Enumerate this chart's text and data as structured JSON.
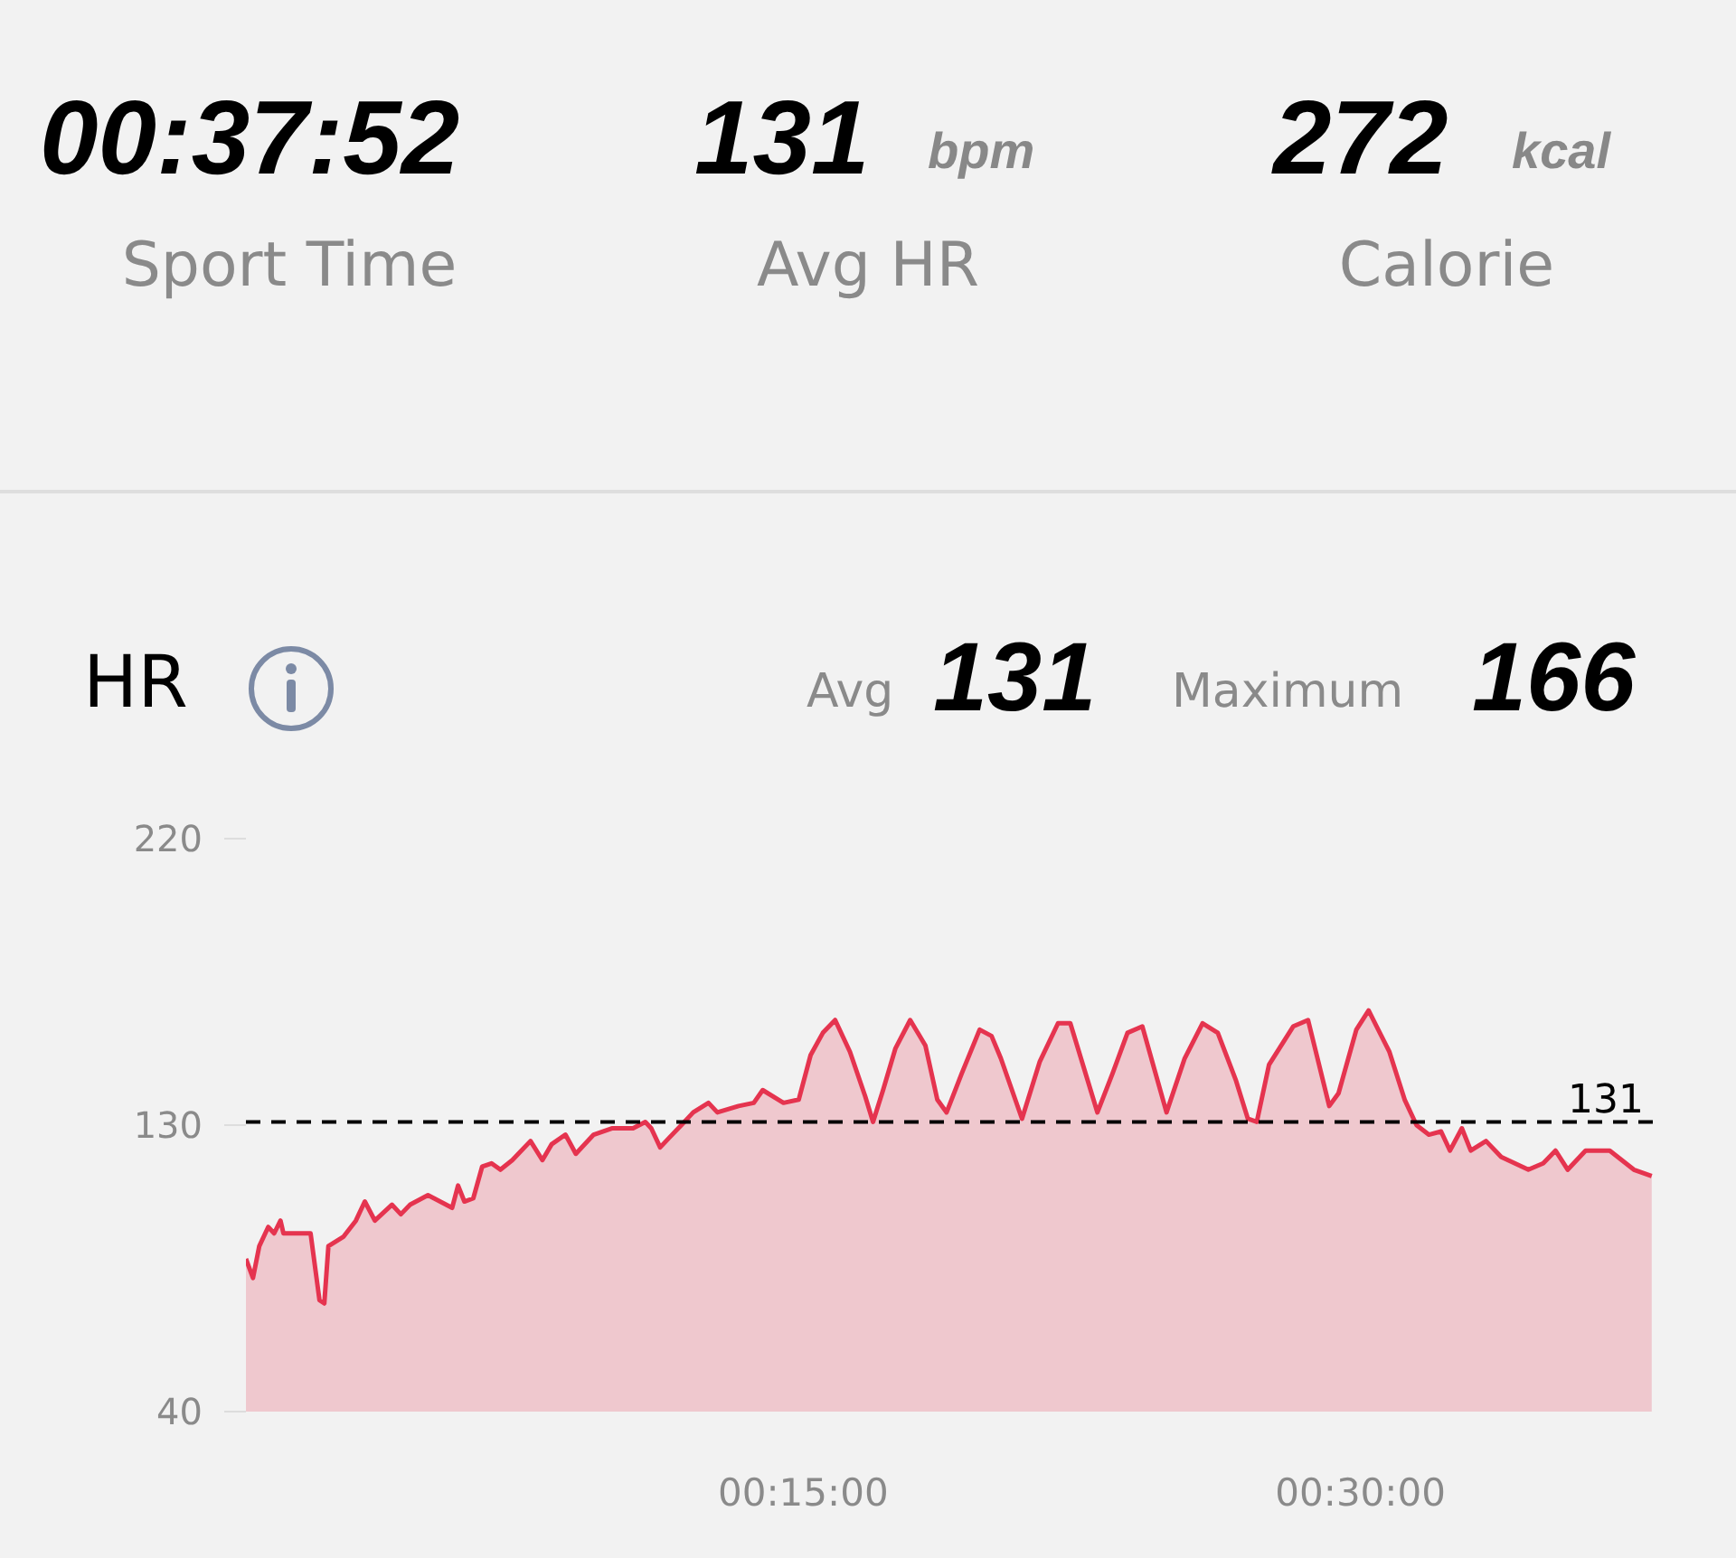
{
  "chart_data": {
    "type": "area",
    "title": "HR",
    "annotations": [
      "00:37:52",
      "Sport Time",
      "131",
      "bpm",
      "Avg HR",
      "272",
      "kcal",
      "Calorie",
      "Avg",
      "131",
      "Maximum",
      "166"
    ],
    "x": [
      0,
      0.19,
      0.36,
      0.6,
      0.76,
      0.93,
      1.01,
      1.74,
      1.98,
      2.11,
      2.22,
      2.63,
      2.96,
      3.2,
      3.47,
      3.93,
      4.17,
      4.42,
      4.9,
      5.55,
      5.71,
      5.88,
      6.12,
      6.36,
      6.61,
      6.85,
      7.17,
      7.66,
      7.98,
      8.23,
      8.6,
      8.88,
      9.36,
      9.85,
      10.42,
      10.75,
      10.91,
      11.15,
      11.39,
      11.72,
      12.04,
      12.45,
      12.69,
      13.26,
      13.67,
      13.91,
      14.47,
      14.88,
      15.2,
      15.53,
      15.86,
      16.26,
      16.67,
      16.88,
      17.15,
      17.48,
      17.88,
      18.29,
      18.61,
      18.86,
      19.26,
      19.75,
      20.07,
      20.32,
      20.89,
      21.37,
      21.86,
      22.19,
      22.92,
      23.32,
      23.73,
      24.13,
      24.78,
      25.27,
      25.75,
      26.16,
      26.65,
      26.97,
      27.21,
      27.54,
      28.19,
      28.59,
      29.16,
      29.41,
      29.89,
      30.22,
      30.78,
      31.19,
      31.51,
      31.84,
      32.17,
      32.41,
      32.73,
      32.97,
      33.38,
      33.79,
      34.52,
      34.92,
      35.25,
      35.58,
      36.06,
      36.71,
      37.36,
      37.84
    ],
    "series": [
      {
        "color": "#e5344f",
        "values": [
          88,
          82,
          92,
          98,
          96,
          100,
          96,
          96,
          75,
          74,
          92,
          95,
          100,
          106,
          100,
          105,
          102,
          105,
          108,
          104,
          111,
          106,
          107,
          117,
          118,
          116,
          119,
          125,
          119,
          124,
          127,
          121,
          127,
          129,
          129,
          131,
          129,
          123,
          126,
          130,
          134,
          137,
          134,
          136,
          137,
          141,
          137,
          138,
          152,
          159,
          163,
          153,
          139,
          131,
          141,
          154,
          163,
          155,
          138,
          134,
          146,
          160,
          158,
          151,
          132,
          150,
          162,
          162,
          134,
          146,
          159,
          161,
          134,
          151,
          162,
          159,
          144,
          132,
          131,
          149,
          161,
          163,
          136,
          140,
          160,
          166,
          153,
          138,
          130,
          127,
          128,
          122,
          129,
          122,
          125,
          120,
          116,
          118,
          122,
          116,
          122,
          122,
          116,
          114
        ]
      }
    ],
    "xlim": [
      0,
      37.87
    ],
    "xticks": [
      {
        "value": 15,
        "label": "00:15:00"
      },
      {
        "value": 30,
        "label": "00:30:00"
      }
    ],
    "ylim": [
      40,
      220
    ],
    "yticks": [
      40,
      130,
      220
    ],
    "ref_lines": [
      {
        "axis": "y",
        "value": 131,
        "label": "131",
        "color": "#000000",
        "line_style": "dashed"
      }
    ],
    "grid": false,
    "legend": false,
    "marker": "none",
    "line_style": "solid"
  }
}
